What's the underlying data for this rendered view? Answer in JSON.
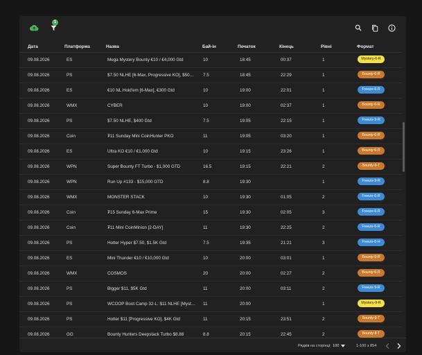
{
  "colors": {
    "panel": "#212121",
    "cloud": "#4caf50",
    "mystery": "#f5e04a",
    "bounty": "#c9782c",
    "freeze": "#3f8ad4"
  },
  "toolbar": {
    "filter_count": "1"
  },
  "columns": [
    "Дата",
    "Платформа",
    "Назва",
    "Бай-ін",
    "Початок",
    "Кінець",
    "Рівні",
    "Формат"
  ],
  "rows": [
    {
      "date": "09.08.2026",
      "platform": "ES",
      "name": "Mega Mystery Bounty €10 / €4,000 Gtd",
      "buyin": "10",
      "start": "18:45",
      "end": "00:37",
      "levels": "1",
      "format": "Mystery-6-R",
      "kind": "mystery"
    },
    {
      "date": "09.08.2026",
      "platform": "PS",
      "name": "$7.50 NLHE [6-Max, Progressive KO], $500 ...",
      "buyin": "7.5",
      "start": "18:45",
      "end": "22:29",
      "levels": "1",
      "format": "Bounty-6-R",
      "kind": "bounty"
    },
    {
      "date": "09.08.2026",
      "platform": "ES",
      "name": "€10 NL Hold'em [6-Max], €300 Gtd",
      "buyin": "10",
      "start": "19:00",
      "end": "22:01",
      "levels": "1",
      "format": "Freeze-6-R",
      "kind": "freeze"
    },
    {
      "date": "09.08.2026",
      "platform": "WMX",
      "name": "CYBER",
      "buyin": "10",
      "start": "19:00",
      "end": "02:37",
      "levels": "1",
      "format": "Bounty-6-R",
      "kind": "bounty"
    },
    {
      "date": "09.08.2026",
      "platform": "PS",
      "name": "$7.50 NLHE, $400 Gtd",
      "buyin": "7.5",
      "start": "19:05",
      "end": "22:15",
      "levels": "1",
      "format": "Freeze-9-R",
      "kind": "freeze"
    },
    {
      "date": "09.08.2026",
      "platform": "Coin",
      "name": "₮11 Sunday Mini CoinHunter PKO",
      "buyin": "11",
      "start": "19:05",
      "end": "03:20",
      "levels": "1",
      "format": "Bounty-6-R",
      "kind": "bounty"
    },
    {
      "date": "09.08.2026",
      "platform": "ES",
      "name": "Ultra KO €10 / €1,000 Gtd",
      "buyin": "10",
      "start": "19:15",
      "end": "23:26",
      "levels": "1",
      "format": "Bounty-6-R",
      "kind": "bounty"
    },
    {
      "date": "09.08.2026",
      "platform": "WPN",
      "name": "Super Bounty FT Turbo - $1,000 GTD",
      "buyin": "16.5",
      "start": "19:15",
      "end": "22:21",
      "levels": "2",
      "format": "Bounty-9-T",
      "kind": "bounty"
    },
    {
      "date": "09.08.2026",
      "platform": "WPN",
      "name": "Run Up #133 - $15,000 GTD",
      "buyin": "8.8",
      "start": "19:30",
      "end": "",
      "levels": "1",
      "format": "Freeze-9-R",
      "kind": "freeze"
    },
    {
      "date": "09.08.2026",
      "platform": "WMX",
      "name": "MONSTER STACK",
      "buyin": "10",
      "start": "19:30",
      "end": "01:05",
      "levels": "2",
      "format": "Freeze-6-R",
      "kind": "freeze"
    },
    {
      "date": "09.08.2026",
      "platform": "Coin",
      "name": "₮15 Sunday 6-Max Prime",
      "buyin": "15",
      "start": "19:30",
      "end": "02:05",
      "levels": "3",
      "format": "Freeze-6-R",
      "kind": "freeze"
    },
    {
      "date": "09.08.2026",
      "platform": "Coin",
      "name": "₮11 Mini CoinMinion [2-DAY]",
      "buyin": "11",
      "start": "19:30",
      "end": "22:25",
      "levels": "2",
      "format": "Freeze-6-R",
      "kind": "freeze"
    },
    {
      "date": "09.08.2026",
      "platform": "PS",
      "name": "Hotter Hyper $7.50, $1.5K Gtd",
      "buyin": "7.5",
      "start": "19:35",
      "end": "21:21",
      "levels": "3",
      "format": "Freeze-6-H",
      "kind": "freeze"
    },
    {
      "date": "09.08.2026",
      "platform": "ES",
      "name": "Mini Thunder €10 / €10,000 Gtd",
      "buyin": "10",
      "start": "20:00",
      "end": "03:01",
      "levels": "1",
      "format": "Bounty-9-R",
      "kind": "bounty"
    },
    {
      "date": "09.08.2026",
      "platform": "WMX",
      "name": "COSMOS",
      "buyin": "20",
      "start": "20:00",
      "end": "02:27",
      "levels": "2",
      "format": "Bounty-6-R",
      "kind": "bounty"
    },
    {
      "date": "09.08.2026",
      "platform": "PS",
      "name": "Bigger $11, $5K Gtd",
      "buyin": "11",
      "start": "20:00",
      "end": "03:11",
      "levels": "2",
      "format": "Freeze-9-R",
      "kind": "freeze"
    },
    {
      "date": "09.08.2026",
      "platform": "PS",
      "name": "WCOOP Boot Camp 32-L: $11 NLHE [Myster...",
      "buyin": "11",
      "start": "20:00",
      "end": "",
      "levels": "1",
      "format": "Mystery-9-R",
      "kind": "mystery"
    },
    {
      "date": "09.08.2026",
      "platform": "PS",
      "name": "Hotter $11 [Progressive KO], $4K Gtd",
      "buyin": "11",
      "start": "20:15",
      "end": "23:51",
      "levels": "2",
      "format": "Bounty-9-T",
      "kind": "bounty"
    },
    {
      "date": "09.08.2026",
      "platform": "GG",
      "name": "Bounty Hunters Deepstack Turbo $8.88",
      "buyin": "8.8",
      "start": "20:15",
      "end": "22:45",
      "levels": "2",
      "format": "Bounty-8-T",
      "kind": "bounty"
    }
  ],
  "footer": {
    "rows_per_page_label": "Рядків на сторінці:",
    "rows_per_page": "100",
    "range": "1-100 з 854"
  }
}
